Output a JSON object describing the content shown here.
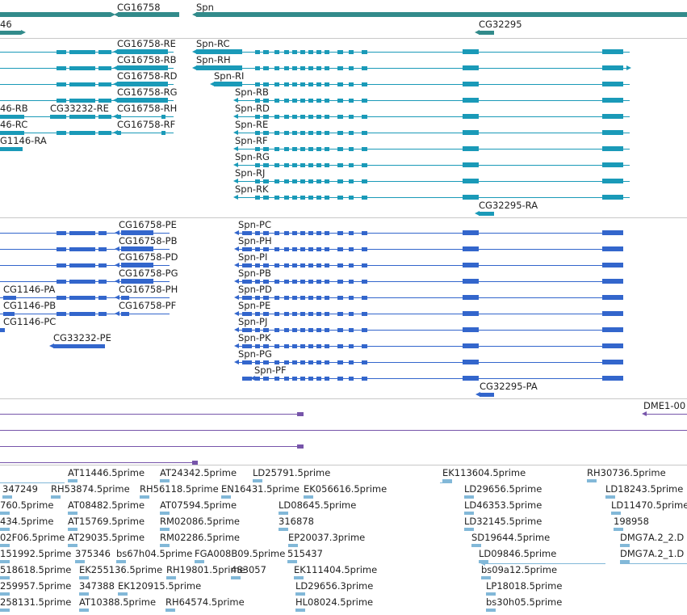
{
  "colors": {
    "gene": "#328b8b",
    "transcript": "#1a9ab8",
    "protein": "#3366cc",
    "repeat": "#7755aa",
    "est": "#82b8d8"
  },
  "genes": {
    "labels": [
      "46",
      "CG16758",
      "Spn",
      "CG32295"
    ]
  },
  "transcripts": {
    "labels": [
      "CG16758-RE",
      "CG16758-RB",
      "CG16758-RD",
      "CG16758-RG",
      "CG16758-RH",
      "CG16758-RF",
      "Spn-RC",
      "Spn-RH",
      "Spn-RI",
      "Spn-RB",
      "Spn-RD",
      "Spn-RE",
      "Spn-RF",
      "Spn-RG",
      "Spn-RJ",
      "Spn-RK",
      "46-RB",
      "CG33232-RE",
      "46-RC",
      "G1146-RA",
      "CG32295-RA"
    ]
  },
  "proteins": {
    "labels": [
      "CG16758-PE",
      "CG16758-PB",
      "CG16758-PD",
      "CG16758-PG",
      "CG16758-PH",
      "CG16758-PF",
      "Spn-PC",
      "Spn-PH",
      "Spn-PI",
      "Spn-PB",
      "Spn-PD",
      "Spn-PE",
      "Spn-PJ",
      "Spn-PK",
      "Spn-PG",
      "Spn-PF",
      "CG1146-PA",
      "CG1146-PB",
      "CG1146-PC",
      "CG33232-PE",
      "CG32295-PA"
    ]
  },
  "repeats": {
    "labels": [
      "DME1-00"
    ]
  },
  "ests": {
    "labels": [
      "AT11446.5prime",
      "AT24342.5prime",
      "LD25791.5prime",
      "EK113604.5prime",
      "RH30736.5prime",
      "347249",
      "RH53874.5prime",
      "RH56118.5prime",
      "EN16431.5prime",
      "EK056616.5prime",
      "LD29656.5prime",
      "LD18243.5prime",
      "760.5prime",
      "AT08482.5prime",
      "AT07594.5prime",
      "LD08645.5prime",
      "LD46353.5prime",
      "LD11470.5prime",
      "434.5prime",
      "AT15769.5prime",
      "RM02086.5prime",
      "316878",
      "LD32145.5prime",
      "198958",
      "02F06.5prime",
      "AT29035.5prime",
      "RM02286.5prime",
      "EP20037.3prime",
      "SD19644.5prime",
      "DMG7A.2_2.D",
      "151992.5prime",
      "375346",
      "bs67h04.5prime",
      "FGA008B09.5prime",
      "515437",
      "LD09846.5prime",
      "DMG7A.2_1.D",
      "518618.5prime",
      "EK255136.5prime",
      "RH19801.5prime",
      "483057",
      "EK111404.5prime",
      "bs09a12.5prime",
      "259957.5prime",
      "347388",
      "EK120915.5prime",
      "LD29656.3prime",
      "LP18018.5prime",
      "258131.5prime",
      "AT10388.5prime",
      "RH64574.5prime",
      "HL08024.5prime",
      "bs30h05.5prime"
    ]
  }
}
